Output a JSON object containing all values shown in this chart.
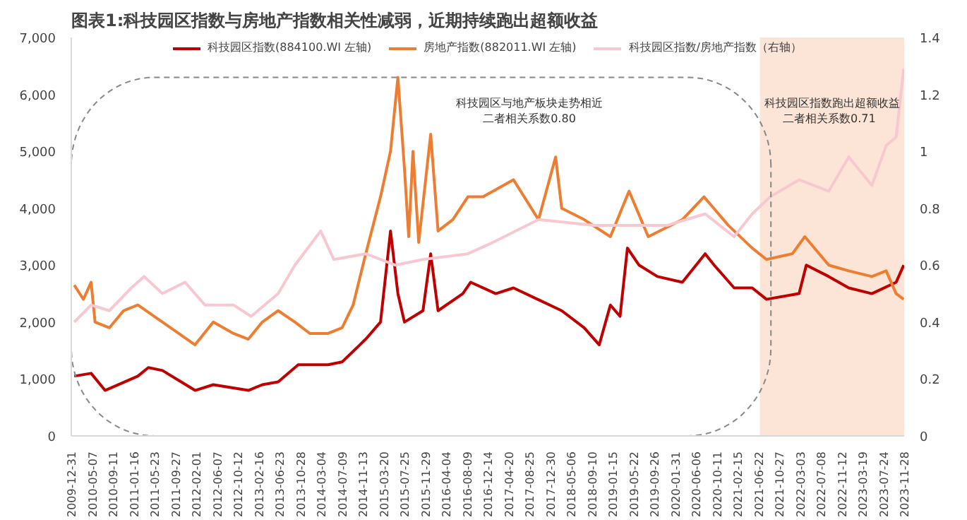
{
  "chart_data": {
    "type": "line",
    "title": "图表1:科技园区指数与房地产指数相关性减弱，近期持续跑出超额收益",
    "series": [
      {
        "name": "科技园区指数(884100.WI 左轴)",
        "color": "#c00000",
        "x": [
          "2010-01-18",
          "2010-05-01",
          "2010-07-25",
          "2011-02-10",
          "2011-04-15",
          "2011-07-10",
          "2012-01-25",
          "2012-05-15",
          "2012-12-15",
          "2013-03-10",
          "2013-06-15",
          "2013-10-15",
          "2014-04-15",
          "2014-07-10",
          "2014-12-01",
          "2015-03-01",
          "2015-05-01",
          "2015-06-15",
          "2015-07-25",
          "2015-11-15",
          "2016-01-01",
          "2016-02-15",
          "2016-07-15",
          "2016-09-01",
          "2017-02-01",
          "2017-05-20",
          "2018-03-10",
          "2018-07-25",
          "2018-10-25",
          "2019-01-01",
          "2019-03-01",
          "2019-04-15",
          "2019-06-25",
          "2019-10-15",
          "2020-03-15",
          "2020-08-01",
          "2020-09-25",
          "2021-01-25",
          "2021-05-15",
          "2021-08-10",
          "2022-02-25",
          "2022-04-10",
          "2022-08-25",
          "2022-12-25",
          "2023-05-15",
          "2023-10-10",
          "2023-11-25"
        ],
        "values": [
          1050,
          1100,
          800,
          1050,
          1200,
          1150,
          800,
          900,
          800,
          900,
          950,
          1250,
          1250,
          1300,
          1700,
          2000,
          3600,
          2500,
          2000,
          2200,
          3200,
          2200,
          2500,
          2700,
          2500,
          2600,
          2200,
          1900,
          1600,
          2300,
          2100,
          3300,
          3000,
          2800,
          2700,
          3200,
          3000,
          2600,
          2600,
          2400,
          2500,
          3000,
          2800,
          2600,
          2500,
          2700,
          3000
        ]
      },
      {
        "name": "房地产指数(882011.WI 左轴)",
        "color": "#ed7d31",
        "x": [
          "2010-01-18",
          "2010-03-15",
          "2010-05-01",
          "2010-05-25",
          "2010-08-20",
          "2010-11-15",
          "2011-02-10",
          "2011-07-10",
          "2012-01-25",
          "2012-05-15",
          "2012-09-15",
          "2012-12-15",
          "2013-03-10",
          "2013-06-15",
          "2013-09-25",
          "2013-12-25",
          "2014-04-15",
          "2014-07-10",
          "2014-09-15",
          "2014-12-01",
          "2015-03-01",
          "2015-05-01",
          "2015-06-15",
          "2015-07-25",
          "2015-08-20",
          "2015-09-15",
          "2015-10-20",
          "2016-01-01",
          "2016-02-15",
          "2016-05-15",
          "2016-08-15",
          "2016-11-15",
          "2017-05-20",
          "2017-10-20",
          "2018-02-01",
          "2018-03-10",
          "2018-07-25",
          "2019-01-01",
          "2019-04-25",
          "2019-08-20",
          "2020-03-15",
          "2020-07-25",
          "2020-12-20",
          "2021-05-15",
          "2021-08-10",
          "2022-01-15",
          "2022-04-01",
          "2022-08-25",
          "2022-12-25",
          "2023-05-15",
          "2023-08-10",
          "2023-10-10",
          "2023-11-25"
        ],
        "values": [
          2650,
          2400,
          2700,
          2000,
          1900,
          2200,
          2300,
          2000,
          1600,
          2000,
          1800,
          1700,
          2000,
          2200,
          2000,
          1800,
          1800,
          1900,
          2300,
          3200,
          4200,
          5000,
          6300,
          4700,
          3500,
          5000,
          3400,
          5300,
          3600,
          3800,
          4200,
          4200,
          4500,
          3800,
          4900,
          4000,
          3800,
          3500,
          4300,
          3500,
          3800,
          4200,
          3700,
          3300,
          3100,
          3200,
          3500,
          3000,
          2900,
          2800,
          2900,
          2500,
          2400
        ]
      },
      {
        "name": "科技园区指数/房地产指数（右轴）",
        "color": "#f8c8d0",
        "axis": "y2",
        "x": [
          "2010-01-18",
          "2010-05-01",
          "2010-08-20",
          "2011-01-01",
          "2011-03-20",
          "2011-07-10",
          "2011-11-25",
          "2012-03-25",
          "2012-09-15",
          "2013-01-01",
          "2013-06-15",
          "2013-09-25",
          "2014-03-01",
          "2014-05-20",
          "2014-12-01",
          "2015-06-01",
          "2015-11-15",
          "2016-08-15",
          "2017-01-15",
          "2017-10-20",
          "2018-09-25",
          "2019-12-15",
          "2020-08-01",
          "2021-01-25",
          "2021-05-15",
          "2021-09-01",
          "2022-02-25",
          "2022-08-25",
          "2022-12-25",
          "2023-05-15",
          "2023-08-10",
          "2023-10-10",
          "2023-11-25"
        ],
        "values": [
          0.4,
          0.46,
          0.44,
          0.52,
          0.56,
          0.5,
          0.54,
          0.46,
          0.46,
          0.42,
          0.5,
          0.6,
          0.72,
          0.62,
          0.64,
          0.6,
          0.62,
          0.64,
          0.68,
          0.76,
          0.74,
          0.74,
          0.78,
          0.7,
          0.78,
          0.84,
          0.9,
          0.86,
          0.98,
          0.88,
          1.02,
          1.05,
          1.29
        ]
      }
    ],
    "xlim": [
      "2009-12-31",
      "2023-11-28"
    ],
    "xticks": [
      "2009-12-31",
      "2010-05-07",
      "2010-09-11",
      "2011-01-16",
      "2011-05-23",
      "2011-09-27",
      "2012-02-01",
      "2012-06-07",
      "2012-10-12",
      "2013-02-16",
      "2013-06-23",
      "2013-10-28",
      "2014-03-04",
      "2014-07-09",
      "2014-11-13",
      "2015-03-20",
      "2015-07-25",
      "2015-11-29",
      "2016-04-04",
      "2016-08-09",
      "2016-12-14",
      "2017-04-20",
      "2017-08-25",
      "2017-12-30",
      "2018-05-06",
      "2018-09-10",
      "2019-01-15",
      "2019-05-22",
      "2019-09-26",
      "2020-01-31",
      "2020-06-06",
      "2020-10-11",
      "2021-02-15",
      "2021-06-22",
      "2021-10-27",
      "2022-03-03",
      "2022-07-08",
      "2022-11-12",
      "2023-03-19",
      "2023-07-24",
      "2023-11-28"
    ],
    "ylim": [
      0,
      7000
    ],
    "yticks": [
      0,
      {
        "value": 1000,
        "label": "1,000"
      },
      {
        "value": 2000,
        "label": "2,000"
      },
      {
        "value": 3000,
        "label": "3,000"
      },
      {
        "value": 4000,
        "label": "4,000"
      },
      {
        "value": 5000,
        "label": "5,000"
      },
      {
        "value": 6000,
        "label": "6,000"
      },
      {
        "value": 7000,
        "label": "7,000"
      }
    ],
    "y2lim": [
      0,
      1.4
    ],
    "y2ticks": [
      0,
      0.2,
      0.4,
      0.6,
      0.8,
      1,
      1.2,
      1.4
    ],
    "bands": [
      {
        "axis": "x",
        "from": "2021-07-01",
        "to": "2023-11-28",
        "label": "科技园区指数跑出超额收益",
        "color": "#fce4d6"
      }
    ],
    "annotations": [
      "科技园区与地产板块走势相近",
      "二者相关系数0.80",
      "二者相关系数0.71"
    ],
    "legend": "top",
    "grid": false,
    "line_style": "solid"
  }
}
